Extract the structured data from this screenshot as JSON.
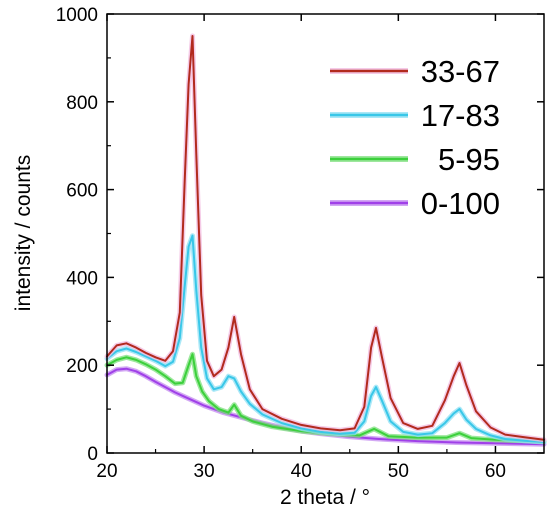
{
  "chart_data": {
    "type": "line",
    "xlabel": "2 theta / °",
    "ylabel": "intensity / counts",
    "xlim": [
      20,
      65
    ],
    "ylim": [
      0,
      1000
    ],
    "xticks": [
      20,
      30,
      40,
      50,
      60
    ],
    "yticks": [
      0,
      200,
      400,
      600,
      800,
      1000
    ],
    "grid": false,
    "legend_position": "top-right",
    "series": [
      {
        "name": "33-67",
        "color": "#b22a1e",
        "peak_color": "#f2b9df",
        "x": [
          20,
          21,
          22,
          23,
          24,
          25,
          26,
          26.8,
          27.5,
          28.0,
          28.4,
          28.8,
          29.2,
          29.7,
          30.3,
          31,
          31.8,
          32.5,
          33.1,
          33.8,
          34.7,
          36,
          38,
          40,
          42,
          44,
          45.5,
          46.5,
          47.2,
          47.7,
          48.3,
          49.2,
          50.5,
          52,
          53.5,
          54.8,
          55.7,
          56.3,
          57,
          58,
          59.5,
          61,
          63,
          65
        ],
        "y": [
          220,
          245,
          250,
          240,
          228,
          218,
          210,
          232,
          320,
          620,
          840,
          950,
          680,
          360,
          210,
          175,
          190,
          240,
          310,
          225,
          145,
          100,
          78,
          64,
          56,
          52,
          56,
          105,
          240,
          285,
          220,
          125,
          68,
          55,
          62,
          120,
          175,
          205,
          155,
          95,
          58,
          42,
          36,
          30
        ]
      },
      {
        "name": "17-83",
        "color": "#39c7e8",
        "peak_color": "#8fe0f4",
        "x": [
          20,
          21,
          22,
          23,
          24,
          25,
          26,
          26.8,
          27.5,
          28.0,
          28.4,
          28.8,
          29.2,
          29.7,
          30.3,
          31,
          31.8,
          32.5,
          33.1,
          33.8,
          34.7,
          36,
          38,
          40,
          42,
          44,
          45.5,
          46.5,
          47.2,
          47.7,
          48.3,
          49.2,
          50.5,
          52,
          53.5,
          54.8,
          55.7,
          56.3,
          57,
          58,
          59.5,
          61,
          63,
          65
        ],
        "y": [
          215,
          232,
          238,
          230,
          220,
          210,
          198,
          208,
          262,
          380,
          470,
          495,
          370,
          240,
          170,
          145,
          150,
          175,
          170,
          140,
          112,
          88,
          68,
          56,
          48,
          44,
          46,
          72,
          130,
          150,
          120,
          72,
          48,
          42,
          45,
          68,
          90,
          100,
          76,
          55,
          40,
          32,
          28,
          25
        ]
      },
      {
        "name": "5-95",
        "color": "#3cd03c",
        "peak_color": "#7ee07e",
        "x": [
          20,
          21,
          22,
          23,
          24,
          25,
          26,
          27,
          27.8,
          28.4,
          28.8,
          29.2,
          29.8,
          30.5,
          31.5,
          32.5,
          33.1,
          33.8,
          35,
          37,
          40,
          43,
          46,
          47.5,
          49,
          52,
          55,
          56.3,
          57.5,
          60,
          63,
          65
        ],
        "y": [
          200,
          212,
          218,
          212,
          202,
          190,
          175,
          158,
          160,
          200,
          225,
          175,
          140,
          118,
          100,
          92,
          110,
          85,
          72,
          60,
          50,
          44,
          40,
          55,
          38,
          35,
          35,
          45,
          34,
          30,
          28,
          26
        ]
      },
      {
        "name": "0-100",
        "color": "#a040e8",
        "peak_color": "#c48cf0",
        "x": [
          20,
          21,
          22,
          23,
          24,
          25,
          26,
          27,
          28,
          29,
          30,
          31,
          32,
          33,
          34,
          35,
          36,
          38,
          40,
          42,
          45,
          48,
          52,
          56,
          60,
          65
        ],
        "y": [
          178,
          190,
          192,
          186,
          175,
          162,
          150,
          138,
          128,
          118,
          108,
          100,
          92,
          86,
          80,
          74,
          68,
          58,
          50,
          44,
          37,
          32,
          27,
          24,
          22,
          20
        ]
      }
    ]
  }
}
